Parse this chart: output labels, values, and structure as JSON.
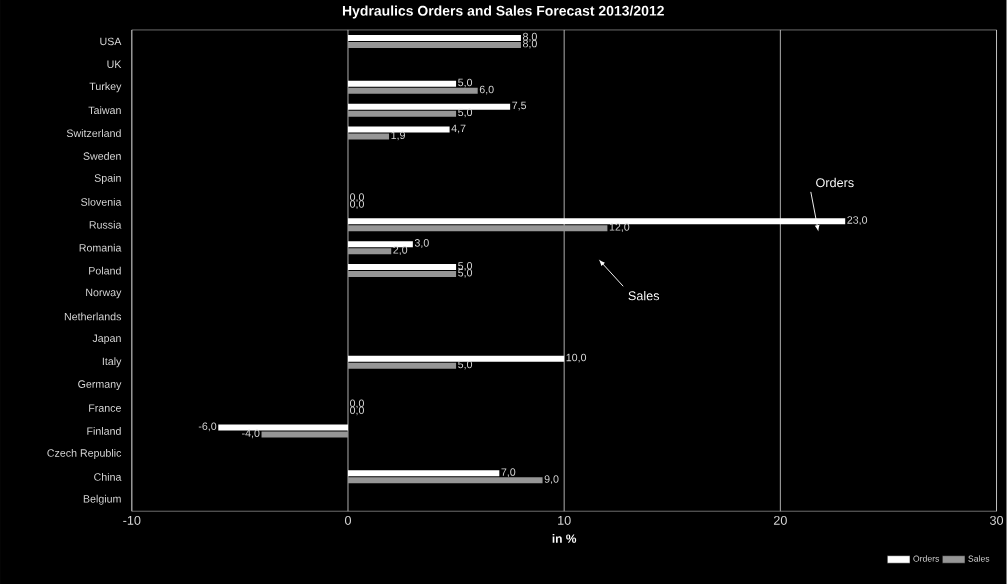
{
  "chart_data": {
    "type": "bar",
    "orientation": "horizontal",
    "title": "Hydraulics Orders and Sales Forecast 2013/2012",
    "xlabel": "in %",
    "categories": [
      "USA",
      "UK",
      "Turkey",
      "Taiwan",
      "Switzerland",
      "Sweden",
      "Spain",
      "Slovenia",
      "Russia",
      "Romania",
      "Poland",
      "Norway",
      "Netherlands",
      "Japan",
      "Italy",
      "Germany",
      "France",
      "Finland",
      "Czech Republic",
      "China",
      "Belgium"
    ],
    "series": [
      {
        "name": "Orders",
        "color": "#ffffff",
        "values": [
          8.0,
          null,
          5.0,
          7.5,
          4.7,
          null,
          null,
          0.0,
          23.0,
          3.0,
          5.0,
          null,
          null,
          null,
          10.0,
          null,
          0.0,
          -6.0,
          null,
          7.0,
          null
        ],
        "value_labels": [
          "8,0",
          null,
          "5,0",
          "7,5",
          "4,7",
          null,
          null,
          "0,0",
          "23,0",
          "3,0",
          "5,0",
          null,
          null,
          null,
          "10,0",
          null,
          "0,0",
          "-6,0",
          null,
          "7,0",
          null
        ]
      },
      {
        "name": "Sales",
        "color": "#969696",
        "values": [
          8.0,
          null,
          6.0,
          5.0,
          1.9,
          null,
          null,
          0.0,
          12.0,
          2.0,
          5.0,
          null,
          null,
          null,
          5.0,
          null,
          0.0,
          -4.0,
          null,
          9.0,
          null
        ],
        "value_labels": [
          "8,0",
          null,
          "6,0",
          "5,0",
          "1,9",
          null,
          null,
          "0,0",
          "12,0",
          "2,0",
          "5,0",
          null,
          null,
          null,
          "5,0",
          null,
          "0,0",
          "-4,0",
          null,
          "9,0",
          null
        ]
      }
    ],
    "xlim": [
      -10,
      30
    ],
    "xticks": [
      -10,
      0,
      10,
      20,
      30
    ],
    "grid": "x",
    "legend": "bottom right",
    "annotations": [
      "Orders",
      "Sales"
    ]
  }
}
